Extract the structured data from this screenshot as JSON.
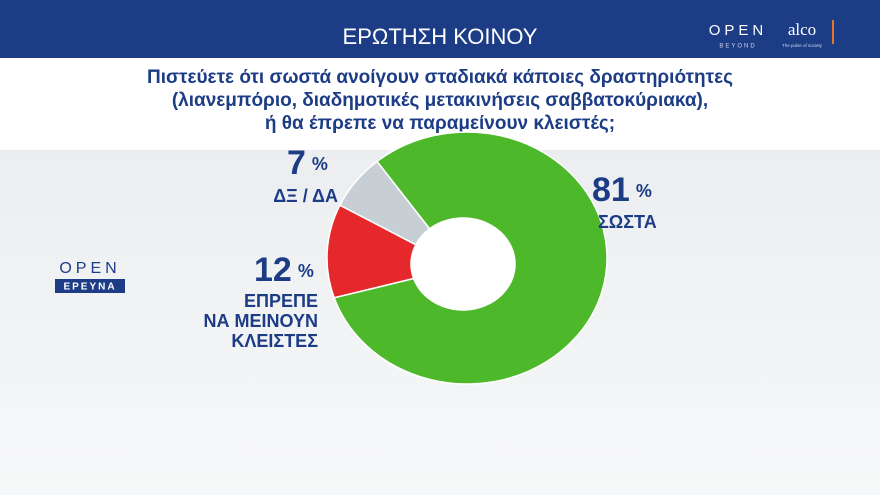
{
  "header": {
    "title": "ΕΡΩΤΗΣΗ ΚΟΙΝΟΥ"
  },
  "branding": {
    "open": "OPEN",
    "beyond": "BEYOND",
    "alco": "alco",
    "alco_tagline": "The pulse of society",
    "side_open": "OPEN",
    "side_label": "ΕΡΕΥΝΑ"
  },
  "chart_data": {
    "type": "donut",
    "title": [
      "Πιστεύετε ότι σωστά ανοίγουν σταδιακά κάποιες δραστηριότητες",
      "(λιανεμπόριο, διαδημοτικές μετακινήσεις σαββατοκύριακα),",
      "ή θα έπρεπε να παραμείνουν κλειστές;"
    ],
    "categories": [
      [
        "ΣΩΣΤΑ"
      ],
      [
        "ΕΠΡΕΠΕ",
        "ΝΑ ΜΕΙΝΟΥΝ",
        "ΚΛΕΙΣΤΕΣ"
      ],
      [
        "ΔΞ / ΔΑ"
      ]
    ],
    "values": [
      81,
      12,
      7
    ],
    "unit": "%",
    "colors": [
      "#4cb82a",
      "#e5282b",
      "#c7cfd5"
    ]
  }
}
